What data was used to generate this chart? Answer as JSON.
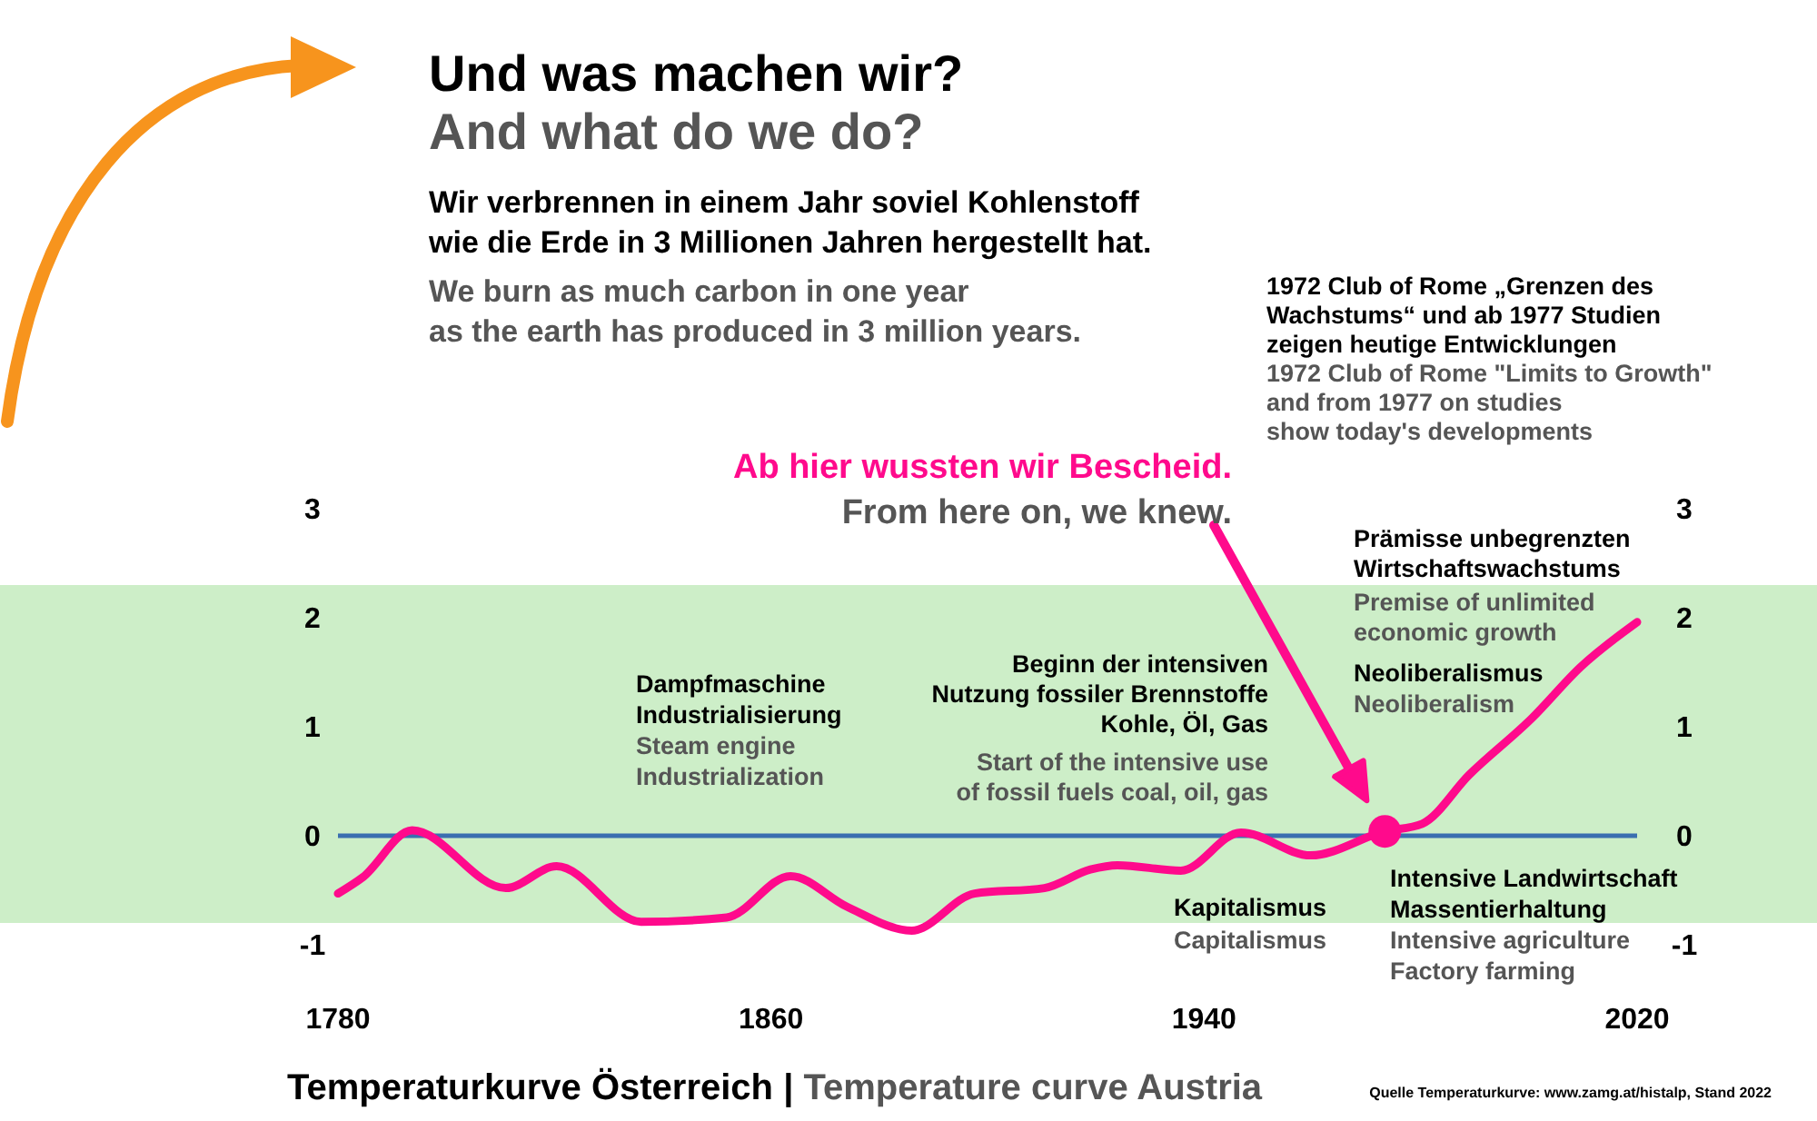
{
  "chart_data": {
    "type": "line",
    "title": "Und was machen wir?",
    "subtitle": "And what do we do?",
    "xlabel": "Temperaturkurve Österreich | Temperature curve Austria",
    "x": [
      1780,
      1784.6,
      1793.7,
      1811,
      1820.4,
      1836,
      1851.8,
      1863.6,
      1874,
      1886,
      1897.6,
      1910.5,
      1919,
      1924,
      1935.7,
      1946.8,
      1959.7,
      1973.4,
      1980.3,
      1989,
      2000.6,
      2009.6,
      2020
    ],
    "series": [
      {
        "color": "#ff0a8c",
        "values": [
          -0.53,
          -0.38,
          0.05,
          -0.48,
          -0.28,
          -0.79,
          -0.75,
          -0.37,
          -0.65,
          -0.87,
          -0.53,
          -0.48,
          -0.31,
          -0.27,
          -0.32,
          0.03,
          -0.18,
          0.04,
          0.11,
          0.56,
          1.08,
          1.55,
          1.96
        ]
      },
      {
        "type": "scatter",
        "color": "#ff0a8c",
        "x": [
          1973.4
        ],
        "values": [
          0.04
        ]
      }
    ],
    "xlim": [
      1780,
      2020
    ],
    "xticks": [
      1780,
      1860,
      1940,
      2020
    ],
    "ylim": [
      -1,
      3
    ],
    "yticks": [
      -1,
      0,
      1,
      2,
      3
    ],
    "y2lim": [
      -1,
      3
    ],
    "y2ticks": [
      -1,
      0,
      1,
      2,
      3
    ],
    "ref_lines": [
      {
        "axis": "y",
        "value": 0,
        "color": "#3a6fb0"
      }
    ],
    "bands": [
      {
        "axis": "y",
        "from": -0.8,
        "to": 2.3,
        "color": "#cdeec8"
      }
    ],
    "annotations": [
      "Wir verbrennen in einem Jahr soviel Kohlenstoff\nwie die Erde in 3 Millionen Jahren hergestellt hat.",
      "We burn as much carbon in one year\nas the earth has produced in 3 million years.",
      "1972 Club of Rome „Grenzen des\nWachstums“ und ab 1977 Studien\nzeigen heutige Entwicklungen",
      "1972 Club of Rome \"Limits to Growth\"\nand from 1977 on studies\nshow today's developments",
      "Ab hier wussten wir Bescheid.",
      "From here on, we knew.",
      "Prämisse unbegrenzten\nWirtschaftswachstums",
      "Premise of unlimited\neconomic growth",
      "Neoliberalismus",
      "Neoliberalism",
      "Dampfmaschine\nIndustrialisierung",
      "Steam engine\nIndustrialization",
      "Beginn der intensiven\nNutzung fossiler Brennstoffe\nKohle, Öl, Gas",
      "Start of the intensive use\nof fossil fuels coal, oil, gas",
      "Kapitalismus",
      "Capitalismus",
      "Intensive Landwirtschaft\nMassentierhaltung",
      "Intensive agriculture\nFactory farming",
      "Quelle Temperaturkurve: www.zamg.at/histalp, Stand 2022"
    ]
  }
}
